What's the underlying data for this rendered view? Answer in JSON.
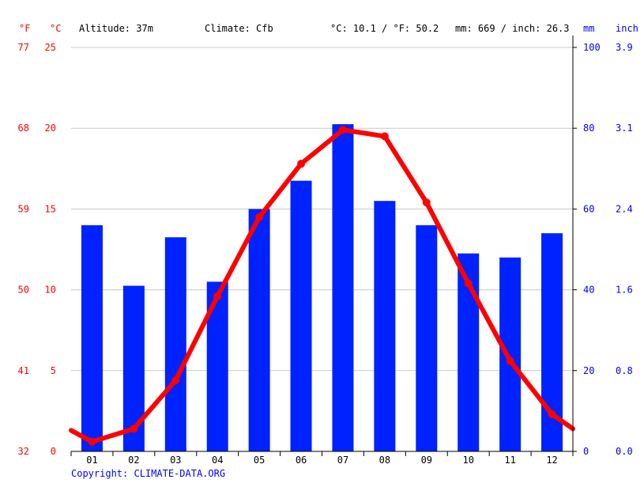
{
  "header": {
    "unit_f": "°F",
    "unit_c": "°C",
    "altitude": "Altitude: 37m",
    "climate": "Climate: Cfb",
    "temp_avg": "°C: 10.1 / °F: 50.2",
    "precip_total": "mm: 669 / inch: 26.3",
    "unit_mm": "mm",
    "unit_inch": "inch"
  },
  "footer": {
    "copyright": "Copyright: CLIMATE-DATA.ORG"
  },
  "axes": {
    "celsius_ticks": [
      "0",
      "5",
      "10",
      "15",
      "20",
      "25"
    ],
    "fahrenheit_ticks": [
      "32",
      "41",
      "50",
      "59",
      "68",
      "77"
    ],
    "mm_ticks": [
      "0",
      "20",
      "40",
      "60",
      "80",
      "100"
    ],
    "inch_ticks": [
      "0.0",
      "0.8",
      "1.6",
      "2.4",
      "3.1",
      "3.9"
    ]
  },
  "colors": {
    "temperature": "#ff0000",
    "precipitation": "#0022ff",
    "grid": "#c8c8c8"
  },
  "chart_data": {
    "type": "bar",
    "categories": [
      "01",
      "02",
      "03",
      "04",
      "05",
      "06",
      "07",
      "08",
      "09",
      "10",
      "11",
      "12"
    ],
    "series": [
      {
        "type": "bar",
        "axis": "precipitation_mm",
        "values": [
          56,
          41,
          53,
          42,
          60,
          67,
          81,
          62,
          56,
          49,
          48,
          54
        ]
      },
      {
        "type": "line",
        "axis": "temperature_c",
        "values": [
          0.6,
          1.4,
          4.4,
          9.6,
          14.5,
          17.8,
          19.9,
          19.5,
          15.4,
          10.4,
          5.6,
          2.3
        ]
      }
    ],
    "line_edges": {
      "start_c": 1.3,
      "end_c": 1.4
    },
    "temperature_c_range": [
      0,
      25
    ],
    "precipitation_mm_range": [
      0,
      100
    ],
    "grid": true
  }
}
